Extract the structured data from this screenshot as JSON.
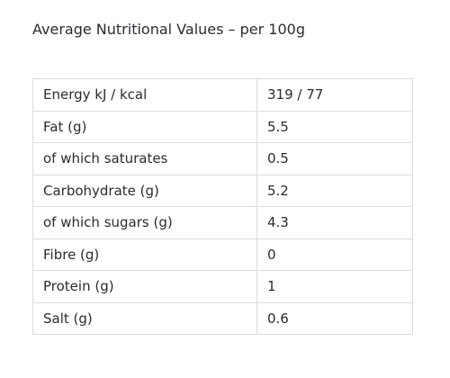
{
  "heading": "Average Nutritional Values – per 100g",
  "rows": [
    {
      "label": "Energy kJ / kcal",
      "value": "319 / 77"
    },
    {
      "label": "Fat (g)",
      "value": "5.5"
    },
    {
      "label": "of which saturates",
      "value": "0.5"
    },
    {
      "label": "Carbohydrate (g)",
      "value": "5.2"
    },
    {
      "label": "of which sugars (g)",
      "value": "4.3"
    },
    {
      "label": "Fibre (g)",
      "value": "0"
    },
    {
      "label": "Protein (g)",
      "value": "1"
    },
    {
      "label": "Salt (g)",
      "value": "0.6"
    }
  ]
}
